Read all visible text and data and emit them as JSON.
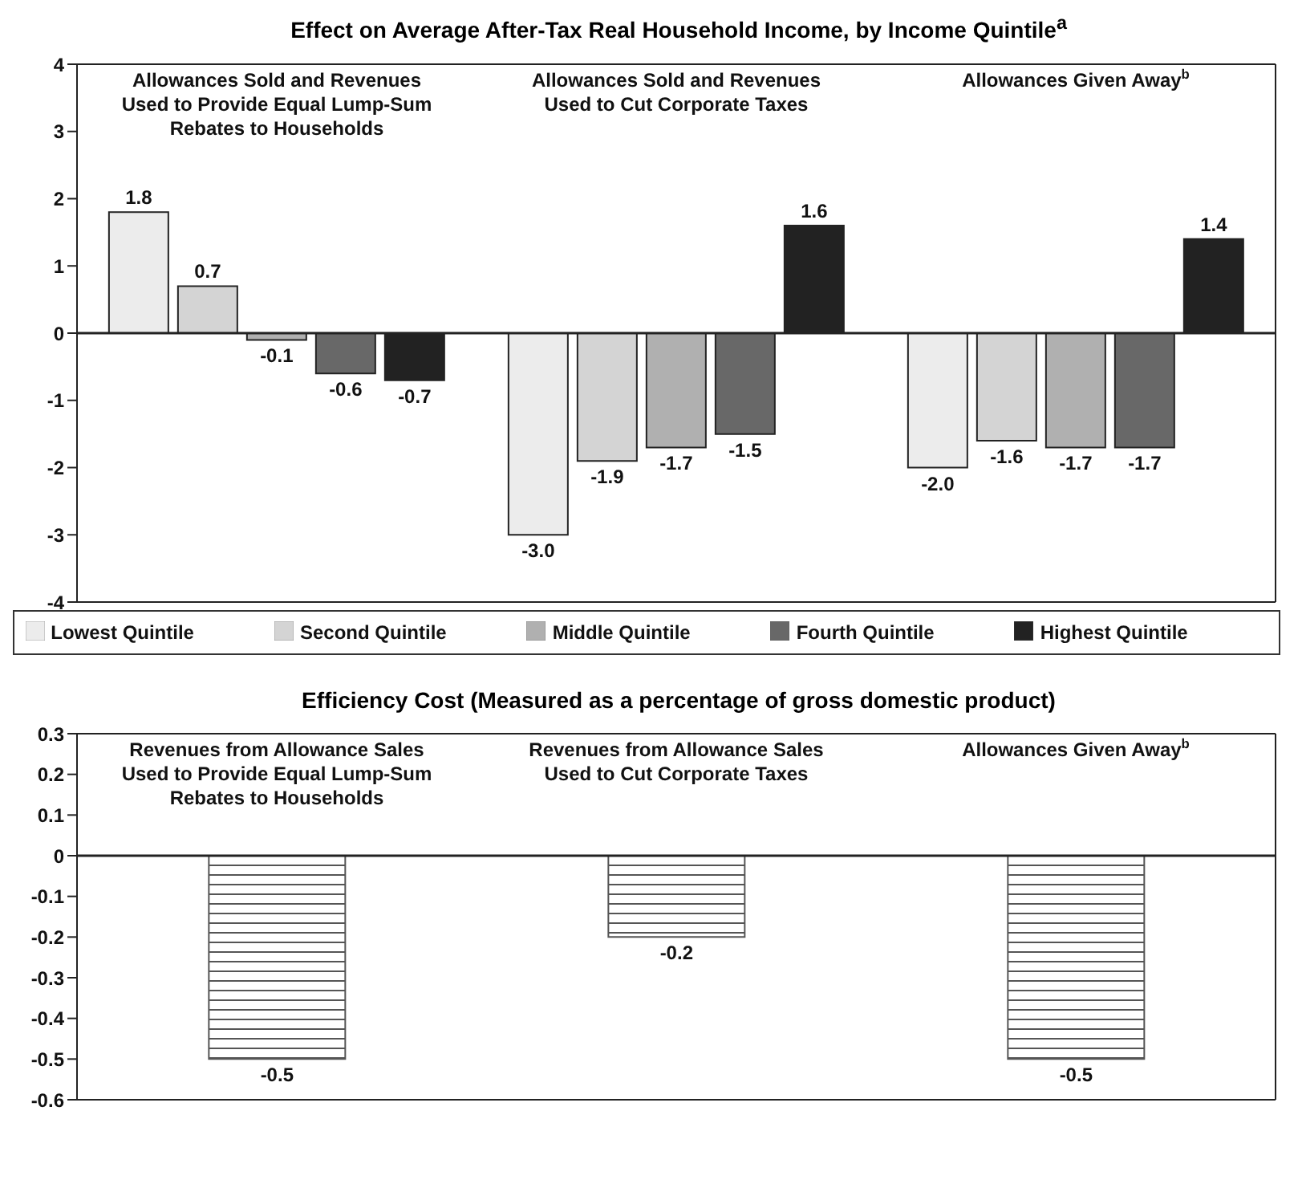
{
  "chart_data": [
    {
      "type": "bar",
      "title": "Effect on Average After-Tax Real Household Income, by Income Quintile$^{a}$",
      "categories": [
        "Allowances Sold and Revenues Used to Provide Equal Lump-Sum Rebates to Households",
        "Allowances Sold and Revenues Used to Cut Corporate Taxes",
        "Allowances Given Away$^{b}$"
      ],
      "series": [
        {
          "name": "Lowest Quintile",
          "color": "#ececec",
          "values": [
            1.8,
            -3.0,
            -2.0
          ],
          "value_labels": [
            "1.8",
            "-3.0",
            "-2.0"
          ]
        },
        {
          "name": "Second Quintile",
          "color": "#d4d4d4",
          "values": [
            0.7,
            -1.9,
            -1.6
          ],
          "value_labels": [
            "0.7",
            "-1.9",
            "-1.6"
          ]
        },
        {
          "name": "Middle Quintile",
          "color": "#b0b0b0",
          "values": [
            -0.1,
            -1.7,
            -1.7
          ],
          "value_labels": [
            "-0.1",
            "-1.7",
            "-1.7"
          ]
        },
        {
          "name": "Fourth Quintile",
          "color": "#686868",
          "values": [
            -0.6,
            -1.5,
            -1.7
          ],
          "value_labels": [
            "-0.6",
            "-1.5",
            "-1.7"
          ]
        },
        {
          "name": "Highest Quintile",
          "color": "#222222",
          "values": [
            -0.7,
            1.6,
            1.4
          ],
          "value_labels": [
            "-0.7",
            "1.6",
            "1.4"
          ]
        }
      ],
      "ylim": [
        -4,
        4
      ],
      "yticks": [
        -4,
        -3,
        -2,
        -1,
        0,
        1,
        2,
        3,
        4
      ],
      "legend": "bottom",
      "ref_lines": [
        {
          "axis": "y",
          "value": 0
        }
      ]
    },
    {
      "type": "bar",
      "title": "Efficiency Cost (Measured as a percentage of gross domestic product)",
      "categories": [
        "Revenues from Allowance Sales Used to Provide Equal Lump-Sum Rebates to Households",
        "Revenues from Allowance Sales Used to Cut Corporate Taxes",
        "Allowances Given Away$^{b}$"
      ],
      "values": [
        -0.5,
        -0.2,
        -0.5
      ],
      "value_labels": [
        "-0.5",
        "-0.2",
        "-0.5"
      ],
      "color": "#555555",
      "ylim": [
        -0.6,
        0.3
      ],
      "yticks": [
        -0.6,
        -0.5,
        -0.4,
        -0.3,
        -0.2,
        -0.1,
        0,
        0.1,
        0.2,
        0.3
      ],
      "ref_lines": [
        {
          "axis": "y",
          "value": 0
        }
      ]
    }
  ]
}
